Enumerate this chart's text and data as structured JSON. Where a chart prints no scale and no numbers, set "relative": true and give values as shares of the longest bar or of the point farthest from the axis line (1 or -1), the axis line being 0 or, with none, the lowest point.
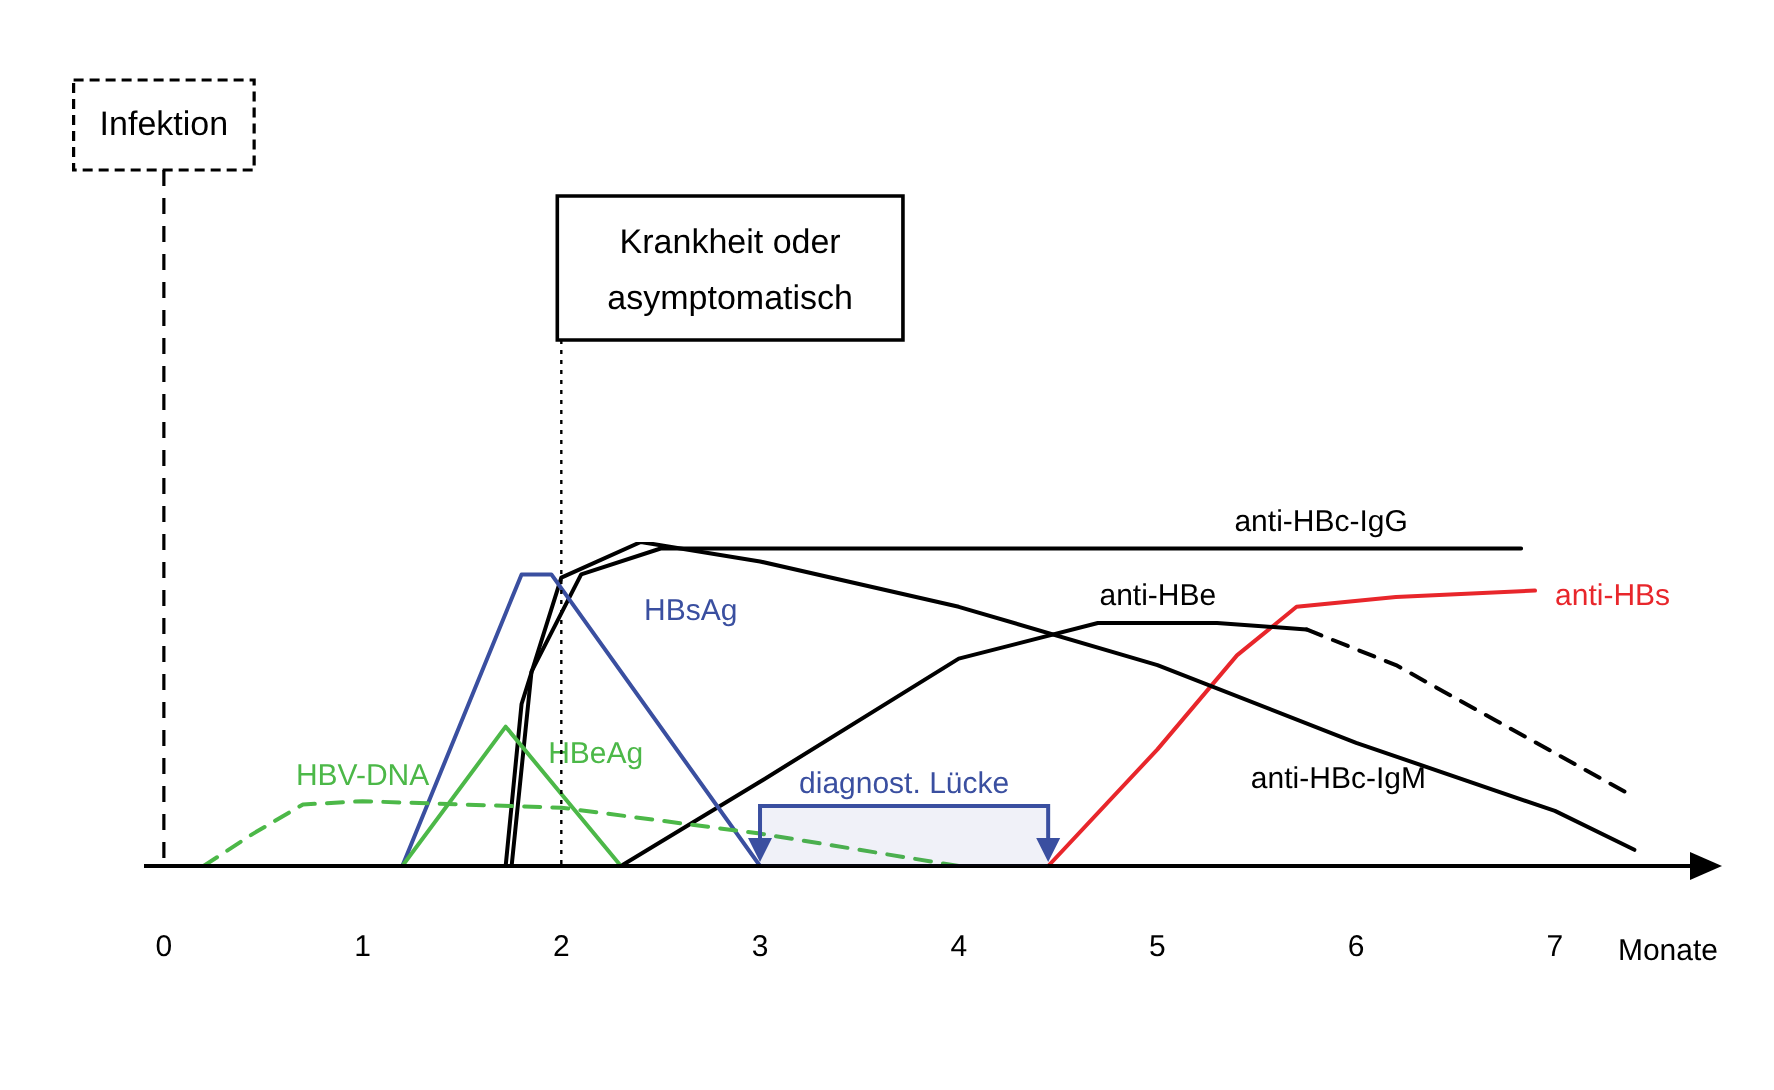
{
  "chart_data": {
    "type": "line",
    "relative": true,
    "xlabel": "Monate",
    "xlim": [
      -0.1,
      7.7
    ],
    "xticks": [
      0,
      1,
      2,
      3,
      4,
      5,
      6,
      7
    ],
    "grid": false,
    "legend": false,
    "marker": "none",
    "series": [
      {
        "name": "HBV-DNA",
        "color": "#4cb848",
        "line_style": "dashed",
        "x": [
          0.2,
          0.45,
          0.7,
          1,
          2,
          3,
          4
        ],
        "values": [
          0,
          0.1,
          0.19,
          0.2,
          0.18,
          0.1,
          0
        ]
      },
      {
        "name": "HBeAg",
        "color": "#4cb848",
        "x": [
          1.2,
          1.72,
          2.3
        ],
        "values": [
          0,
          0.43,
          0
        ]
      },
      {
        "name": "HBsAg",
        "color": "#3a4fa0",
        "x": [
          1.2,
          1.8,
          1.95,
          3
        ],
        "values": [
          0,
          0.9,
          0.9,
          0
        ]
      },
      {
        "name": "anti-HBc-IgM",
        "color": "#000000",
        "x": [
          1.72,
          1.8,
          2,
          2.4,
          3,
          4,
          5,
          6,
          7,
          7.4
        ],
        "values": [
          0,
          0.5,
          0.89,
          1,
          0.94,
          0.8,
          0.62,
          0.38,
          0.17,
          0.05
        ]
      },
      {
        "name": "anti-HBc-IgG",
        "color": "#000000",
        "x": [
          1.75,
          1.85,
          2.1,
          2.5,
          3,
          6.83
        ],
        "values": [
          0,
          0.6,
          0.9,
          0.98,
          0.98,
          0.98
        ]
      },
      {
        "name": "anti-HBe",
        "color": "#000000",
        "x": [
          2.3,
          3,
          4,
          4.7,
          5.3,
          5.75
        ],
        "values": [
          0,
          0.26,
          0.64,
          0.75,
          0.75,
          0.73
        ]
      },
      {
        "color": "#000000",
        "line_style": "dashed",
        "x": [
          5.75,
          6.2,
          6.7,
          7.35
        ],
        "values": [
          0.73,
          0.62,
          0.45,
          0.23
        ]
      },
      {
        "name": "anti-HBs",
        "color": "#e8262b",
        "x": [
          4.45,
          5,
          5.4,
          5.7,
          6.2,
          6.9
        ],
        "values": [
          0,
          0.36,
          0.65,
          0.8,
          0.83,
          0.85
        ]
      }
    ],
    "ref_lines": [
      {
        "axis": "x",
        "value": 0,
        "label": "Infektion",
        "line_style": "dashed",
        "color": "#000000"
      },
      {
        "axis": "x",
        "value": 2,
        "label": "Krankheit oder asymptomatisch",
        "line_style": "dotted",
        "color": "#000000"
      }
    ],
    "bands": [
      {
        "axis": "x",
        "from": 3,
        "to": 4.45,
        "label": "diagnost. Lücke",
        "color": "#3a4fa0"
      }
    ]
  }
}
